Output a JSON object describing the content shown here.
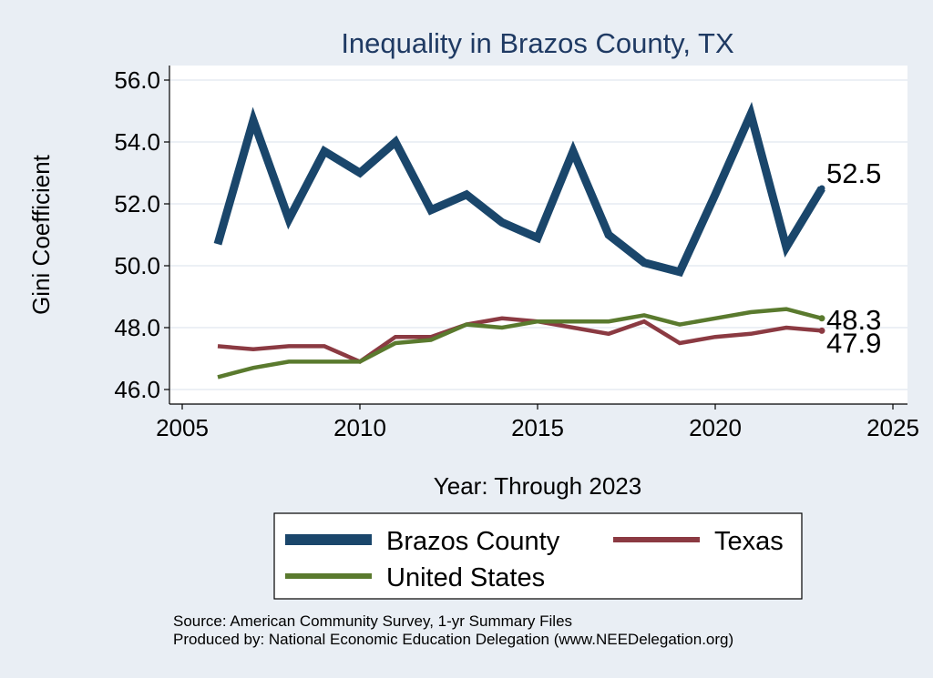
{
  "chart_data": {
    "type": "line",
    "title": "Inequality in Brazos County, TX",
    "xlabel": "Year: Through 2023",
    "ylabel": "Gini Coefficient",
    "xlim": [
      2005,
      2025
    ],
    "ylim": [
      46.0,
      56.0
    ],
    "xticks": [
      "2005",
      "2010",
      "2015",
      "2020",
      "2025"
    ],
    "yticks": [
      "46.0",
      "48.0",
      "50.0",
      "52.0",
      "54.0",
      "56.0"
    ],
    "grid": true,
    "legend_position": "bottom",
    "x": [
      2006,
      2007,
      2008,
      2009,
      2010,
      2011,
      2012,
      2013,
      2014,
      2015,
      2016,
      2017,
      2018,
      2019,
      2020,
      2021,
      2022,
      2023
    ],
    "series": [
      {
        "name": "Brazos County",
        "color": "#1a466b",
        "end_label": "52.5",
        "values": [
          50.7,
          54.7,
          51.5,
          53.7,
          53.0,
          54.0,
          51.8,
          52.3,
          51.4,
          50.9,
          53.7,
          51.0,
          50.1,
          49.8,
          52.3,
          54.9,
          50.6,
          52.5
        ]
      },
      {
        "name": "Texas",
        "color": "#8b3a42",
        "end_label": "47.9",
        "values": [
          47.4,
          47.3,
          47.4,
          47.4,
          46.9,
          47.7,
          47.7,
          48.1,
          48.3,
          48.2,
          48.0,
          47.8,
          48.2,
          47.5,
          47.7,
          47.8,
          48.0,
          47.9
        ]
      },
      {
        "name": "United States",
        "color": "#5a7a2e",
        "end_label": "48.3",
        "values": [
          46.4,
          46.7,
          46.9,
          46.9,
          46.9,
          47.5,
          47.6,
          48.1,
          48.0,
          48.2,
          48.2,
          48.2,
          48.4,
          48.1,
          48.3,
          48.5,
          48.6,
          48.3
        ]
      }
    ],
    "source_lines": [
      "Source: American Community Survey, 1-yr Summary Files",
      "Produced by: National Economic Education Delegation (www.NEEDelegation.org)"
    ]
  }
}
